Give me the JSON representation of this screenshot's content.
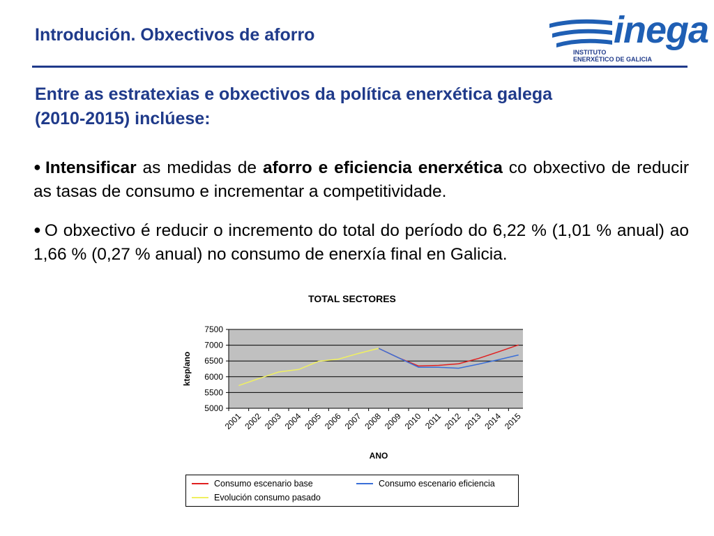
{
  "header": {
    "title": "Introdución. Obxectivos de aforro",
    "logo_word": "inega",
    "logo_sub1": "INSTITUTO",
    "logo_sub2": "ENERXÉTICO DE GALICIA"
  },
  "headline": {
    "line1": "Entre as estratexias e obxectivos da política enerxética galega",
    "line2": "(2010-2015) inclúese:"
  },
  "bullet1": {
    "bold1": "Intensificar",
    "text1": " as medidas de ",
    "bold2": "aforro e eficiencia enerxética",
    "text2": " co obxectivo de reducir as tasas de consumo e incrementar a competitividade."
  },
  "bullet2": {
    "text": "O obxectivo é reducir o incremento do total do período do 6,22 % (1,01 % anual) ao 1,66 % (0,27 % anual) no consumo de enerxía final en Galicia."
  },
  "chart_data": {
    "type": "line",
    "title": "TOTAL SECTORES",
    "xlabel": "ANO",
    "ylabel": "ktep/ano",
    "ylim": [
      5000,
      7500
    ],
    "yticks": [
      5000,
      5500,
      6000,
      6500,
      7000,
      7500
    ],
    "categories": [
      "2001",
      "2002",
      "2003",
      "2004",
      "2005",
      "2006",
      "2007",
      "2008",
      "2009",
      "2010",
      "2011",
      "2012",
      "2013",
      "2014",
      "2015"
    ],
    "grid": true,
    "plot_background": "#c0c0c0",
    "legend_position": "bottom",
    "series": [
      {
        "name": "Consumo escenario base",
        "color": "#e02020",
        "values": [
          null,
          null,
          null,
          null,
          null,
          null,
          null,
          6900,
          6600,
          6340,
          6360,
          6410,
          6580,
          6790,
          7010
        ]
      },
      {
        "name": "Consumo escenario eficiencia",
        "color": "#3a6fd8",
        "values": [
          null,
          null,
          null,
          null,
          null,
          null,
          null,
          6900,
          6600,
          6300,
          6300,
          6270,
          6400,
          6540,
          6690
        ]
      },
      {
        "name": "Evolución consumo pasado",
        "color": "#f0f060",
        "values": [
          5720,
          5940,
          6150,
          6230,
          6490,
          6560,
          6740,
          6900,
          null,
          null,
          null,
          null,
          null,
          null,
          null
        ]
      }
    ]
  }
}
